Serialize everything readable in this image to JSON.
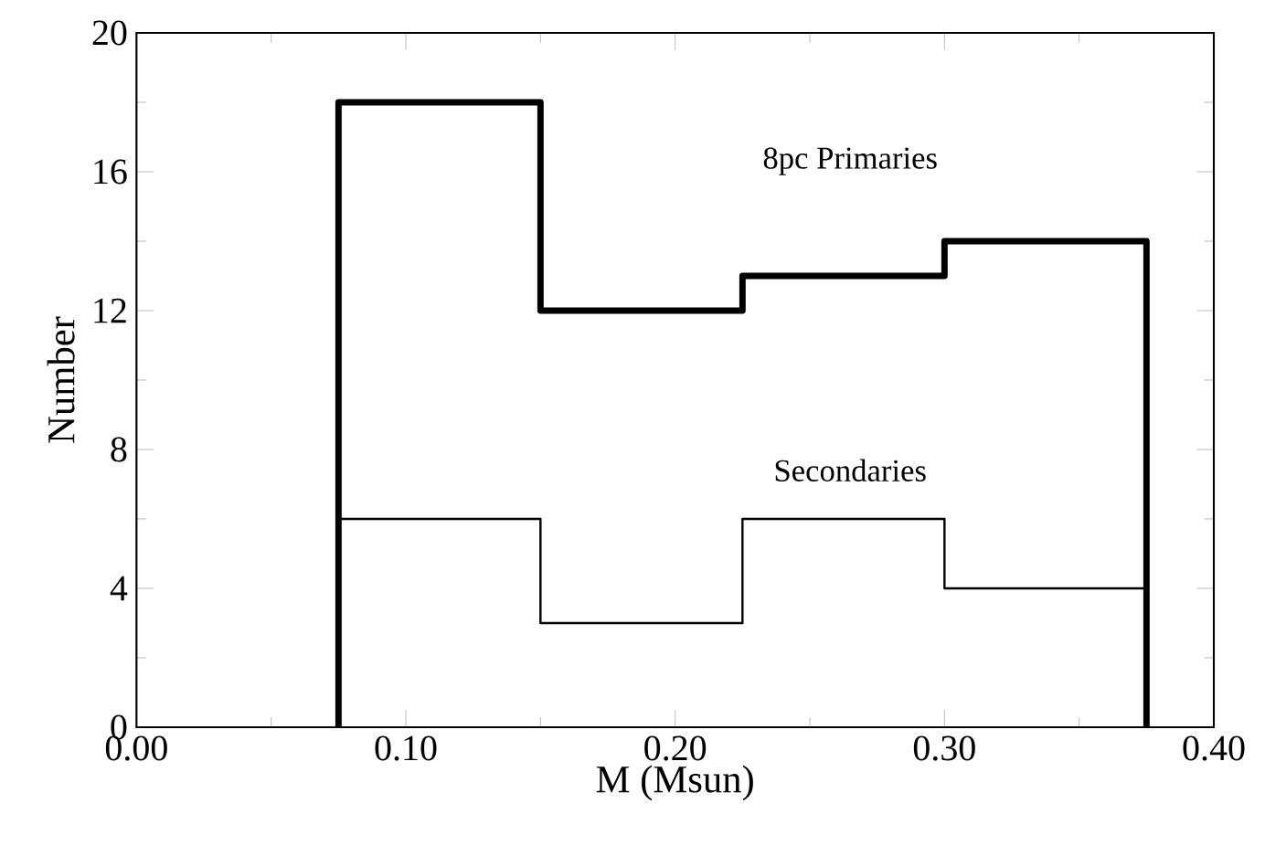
{
  "chart_data": {
    "type": "histogram",
    "xlabel": "M (Msun)",
    "ylabel": "Number",
    "bins": [
      0.075,
      0.15,
      0.225,
      0.3,
      0.375
    ],
    "series": [
      {
        "color": "#000000",
        "values": [
          6,
          3,
          6,
          4
        ]
      },
      {
        "color": "#000000",
        "values": [
          18,
          12,
          13,
          14
        ]
      }
    ],
    "xlim": [
      0,
      0.4
    ],
    "ylim": [
      0,
      20
    ],
    "xticks": [
      {
        "value": 0,
        "label": "0.00"
      },
      {
        "value": 0.1,
        "label": "0.10"
      },
      {
        "value": 0.2,
        "label": "0.20"
      },
      {
        "value": 0.3,
        "label": "0.30"
      },
      {
        "value": 0.4,
        "label": "0.40"
      }
    ],
    "yticks": [
      0,
      4,
      8,
      12,
      16,
      20
    ],
    "annotations": [
      "8pc Primaries",
      "Secondaries"
    ]
  }
}
